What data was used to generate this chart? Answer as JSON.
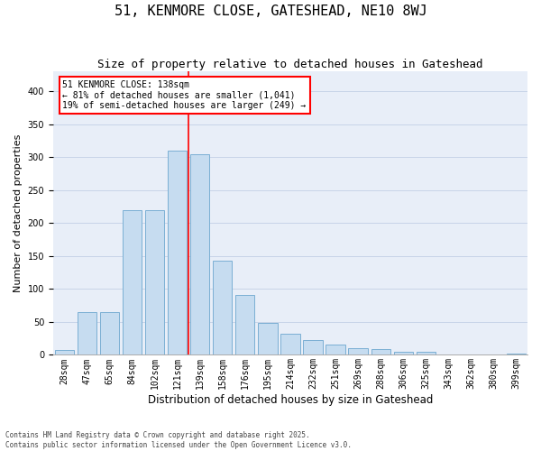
{
  "title": "51, KENMORE CLOSE, GATESHEAD, NE10 8WJ",
  "subtitle": "Size of property relative to detached houses in Gateshead",
  "xlabel": "Distribution of detached houses by size in Gateshead",
  "ylabel": "Number of detached properties",
  "categories": [
    "28sqm",
    "47sqm",
    "65sqm",
    "84sqm",
    "102sqm",
    "121sqm",
    "139sqm",
    "158sqm",
    "176sqm",
    "195sqm",
    "214sqm",
    "232sqm",
    "251sqm",
    "269sqm",
    "288sqm",
    "306sqm",
    "325sqm",
    "343sqm",
    "362sqm",
    "380sqm",
    "399sqm"
  ],
  "values": [
    8,
    65,
    65,
    220,
    220,
    310,
    305,
    143,
    91,
    48,
    32,
    22,
    15,
    10,
    9,
    4,
    4,
    1,
    1,
    1,
    2
  ],
  "bar_color": "#c6dcf0",
  "bar_edge_color": "#7bafd4",
  "vline_color": "red",
  "annotation_text": "51 KENMORE CLOSE: 138sqm\n← 81% of detached houses are smaller (1,041)\n19% of semi-detached houses are larger (249) →",
  "annotation_box_color": "red",
  "annotation_facecolor": "white",
  "ylim": [
    0,
    430
  ],
  "yticks": [
    0,
    50,
    100,
    150,
    200,
    250,
    300,
    350,
    400
  ],
  "grid_color": "#c8d4e8",
  "bg_color": "#e8eef8",
  "footnote": "Contains HM Land Registry data © Crown copyright and database right 2025.\nContains public sector information licensed under the Open Government Licence v3.0.",
  "title_fontsize": 11,
  "subtitle_fontsize": 9,
  "xlabel_fontsize": 8.5,
  "ylabel_fontsize": 8,
  "tick_fontsize": 7,
  "annot_fontsize": 7,
  "footnote_fontsize": 5.5
}
